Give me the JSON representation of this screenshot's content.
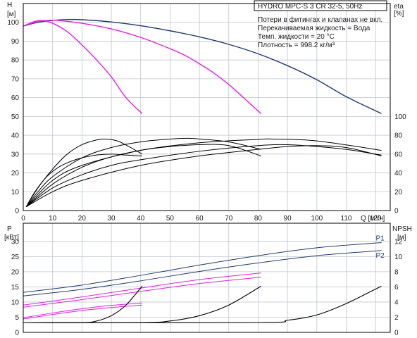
{
  "header": {
    "title": "HYDRO MPC-S 3 CR 32-5, 50Hz",
    "notes": [
      "Потери в фитингах и клапанах не вкл.",
      "Перекачиваемая жидкость = Вода",
      "Темп. жидкости = 20 °C",
      "Плотность = 998.2 кг/м³"
    ]
  },
  "colors": {
    "full_speed": "#1f3a6e",
    "reduced_speed": "#e020e0",
    "efficiency_npsh": "#000000",
    "grid": "#bfc6d1"
  },
  "chart_data": [
    {
      "type": "line",
      "name": "head-efficiency",
      "x_axis": {
        "label": "Q [м³/ч]",
        "range": [
          0,
          125
        ],
        "ticks": [
          0,
          10,
          20,
          30,
          40,
          50,
          60,
          70,
          80,
          90,
          100,
          110,
          120
        ]
      },
      "y_left": {
        "label": "H",
        "unit": "[м]",
        "range": [
          0,
          110
        ],
        "ticks": [
          0,
          10,
          20,
          30,
          40,
          50,
          60,
          70,
          80,
          90,
          100
        ]
      },
      "y_right": {
        "label": "eta",
        "unit": "[%]",
        "range": [
          0,
          110
        ],
        "tick_positions": [
          0,
          10,
          20,
          30,
          40,
          50
        ],
        "tick_labels": [
          "0",
          "20",
          "40",
          "60",
          "80",
          "100"
        ]
      },
      "grid": true,
      "series": [
        {
          "group": "head",
          "color": "full_speed",
          "x": [
            0,
            5,
            10,
            15,
            20,
            30,
            40,
            50,
            60,
            70,
            80,
            90,
            100,
            110,
            120,
            122
          ],
          "y": [
            98,
            100,
            101,
            101.5,
            101.4,
            100.2,
            98.2,
            95.5,
            92.3,
            88.3,
            83.3,
            77,
            69.5,
            60.5,
            53,
            51.5
          ]
        },
        {
          "group": "head",
          "color": "reduced_speed",
          "x": [
            0,
            4,
            8,
            12,
            20,
            30,
            40,
            50,
            55,
            60,
            65,
            70,
            75,
            81
          ],
          "y": [
            98,
            100,
            101,
            101,
            99.5,
            96.5,
            92,
            86,
            82.5,
            78,
            73,
            67,
            60,
            51.5
          ]
        },
        {
          "group": "head",
          "color": "reduced_speed",
          "x": [
            0,
            3,
            6,
            10,
            15,
            20,
            25,
            30,
            35,
            40.5
          ],
          "y": [
            98,
            100,
            101,
            99.5,
            95,
            88,
            80,
            71,
            60,
            51.5
          ]
        },
        {
          "group": "efficiency",
          "color": "efficiency_npsh",
          "x": [
            1,
            5,
            10,
            15,
            20,
            25,
            28,
            32,
            36,
            40.5
          ],
          "y": [
            2,
            12,
            22,
            30,
            35,
            37.5,
            38,
            37,
            34,
            30
          ]
        },
        {
          "group": "efficiency",
          "color": "efficiency_npsh",
          "x": [
            1,
            5,
            10,
            20,
            30,
            40,
            50,
            56,
            60,
            70,
            81
          ],
          "y": [
            2,
            10,
            18,
            28,
            33.5,
            36.5,
            38,
            38.4,
            38,
            36.5,
            32.5
          ]
        },
        {
          "group": "efficiency",
          "color": "efficiency_npsh",
          "x": [
            1,
            10,
            20,
            40,
            60,
            80,
            85,
            100,
            122
          ],
          "y": [
            2,
            16,
            24,
            32,
            36,
            37.8,
            38,
            37,
            32
          ]
        },
        {
          "group": "efficiency",
          "color": "efficiency_npsh",
          "x": [
            1,
            4,
            8,
            12,
            16,
            20,
            25,
            30,
            35,
            40.5
          ],
          "y": [
            2,
            10,
            18,
            23,
            26,
            28,
            29.5,
            30,
            29.5,
            29
          ]
        },
        {
          "group": "efficiency",
          "color": "efficiency_npsh",
          "x": [
            1,
            10,
            20,
            30,
            40,
            50,
            60,
            70,
            81
          ],
          "y": [
            2,
            14,
            23,
            28.5,
            32,
            34,
            35,
            34.5,
            29
          ]
        },
        {
          "group": "efficiency",
          "color": "efficiency_npsh",
          "x": [
            1,
            10,
            20,
            30,
            40,
            60,
            80,
            90,
            100,
            110,
            122
          ],
          "y": [
            2,
            12,
            19,
            24,
            27,
            31.5,
            34.5,
            35,
            34,
            32.5,
            29.5
          ]
        },
        {
          "group": "efficiency",
          "color": "efficiency_npsh",
          "x": [
            1,
            10,
            20,
            40,
            60,
            80,
            90,
            100,
            110,
            122
          ],
          "y": [
            2,
            10,
            16,
            24,
            29,
            32.5,
            34,
            34.5,
            33.5,
            29
          ]
        }
      ]
    },
    {
      "type": "line",
      "name": "power-npsh",
      "x_axis": {
        "range": [
          0,
          125
        ]
      },
      "y_left": {
        "label": "P",
        "unit": "[кВт]",
        "range": [
          0,
          36
        ],
        "ticks": [
          0,
          5,
          10,
          15,
          20,
          25,
          30
        ]
      },
      "y_right": {
        "label": "NPSH",
        "unit": "[м]",
        "range": [
          0,
          14.4
        ],
        "ticks": [
          0,
          2,
          4,
          6,
          8,
          10,
          12
        ]
      },
      "grid": true,
      "series": [
        {
          "name": "P1",
          "group": "power",
          "color": "full_speed",
          "x": [
            0,
            20,
            40,
            60,
            80,
            100,
            122
          ],
          "y": [
            13.2,
            15.6,
            18.8,
            22.2,
            25.3,
            27.9,
            29.6
          ]
        },
        {
          "name": "P2",
          "group": "power",
          "color": "full_speed",
          "x": [
            0,
            20,
            40,
            60,
            80,
            100,
            122
          ],
          "y": [
            12,
            14.2,
            17,
            20.1,
            22.9,
            25.3,
            27
          ]
        },
        {
          "group": "power",
          "color": "reduced_speed",
          "x": [
            0,
            20,
            40,
            60,
            81
          ],
          "y": [
            9,
            11.7,
            14.6,
            17.4,
            19.6
          ]
        },
        {
          "group": "power",
          "color": "reduced_speed",
          "x": [
            0,
            20,
            40,
            60,
            81
          ],
          "y": [
            8.3,
            10.8,
            13.5,
            16.1,
            18.2
          ]
        },
        {
          "group": "power",
          "color": "reduced_speed",
          "x": [
            0,
            10,
            20,
            30,
            40.5
          ],
          "y": [
            4.8,
            6.4,
            7.8,
            8.9,
            9.7
          ]
        },
        {
          "group": "power",
          "color": "reduced_speed",
          "x": [
            0,
            10,
            20,
            30,
            40.5
          ],
          "y": [
            4.4,
            5.9,
            7.2,
            8.2,
            9
          ]
        },
        {
          "group": "npsh",
          "color": "efficiency_npsh",
          "x": [
            0,
            20,
            25,
            30,
            35,
            40.5
          ],
          "y": [
            1.3,
            1.3,
            1.5,
            2.2,
            3.6,
            6.1
          ]
        },
        {
          "group": "npsh",
          "color": "efficiency_npsh",
          "x": [
            0,
            40,
            50,
            60,
            70,
            81
          ],
          "y": [
            1.3,
            1.3,
            1.5,
            2.2,
            3.6,
            6.1
          ]
        },
        {
          "group": "npsh",
          "color": "efficiency_npsh",
          "x": [
            0,
            80,
            90,
            100,
            110,
            122
          ],
          "y": [
            1.3,
            1.3,
            1.6,
            2.3,
            3.8,
            6.1
          ]
        }
      ]
    }
  ]
}
